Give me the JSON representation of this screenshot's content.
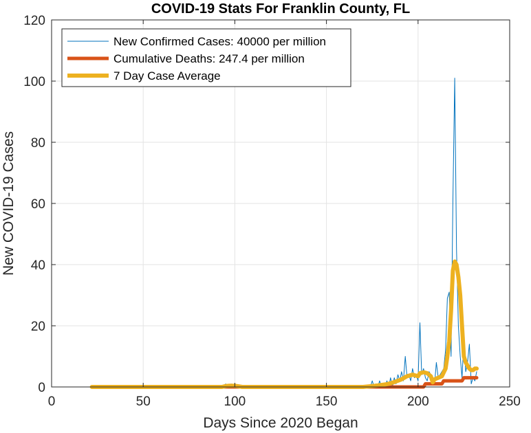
{
  "chart_data": {
    "type": "line",
    "title": "COVID-19 Stats For Franklin County, FL",
    "xlabel": "Days Since 2020 Began",
    "ylabel": "New COVID-19 Cases",
    "xlim": [
      0,
      250
    ],
    "ylim": [
      0,
      120
    ],
    "xticks": [
      0,
      50,
      100,
      150,
      200,
      250
    ],
    "yticks": [
      0,
      20,
      40,
      60,
      80,
      100,
      120
    ],
    "grid": true,
    "legend_position": "top-left",
    "series": [
      {
        "name": "New Confirmed Cases: 40000 per million",
        "color": "#0072BD",
        "x": [
          22,
          90,
          94,
          95,
          96,
          97,
          98,
          99,
          100,
          101,
          102,
          103,
          104,
          170,
          174,
          175,
          176,
          177,
          178,
          179,
          180,
          181,
          182,
          183,
          184,
          185,
          186,
          187,
          188,
          189,
          190,
          191,
          192,
          193,
          194,
          195,
          196,
          197,
          198,
          199,
          200,
          201,
          202,
          203,
          204,
          205,
          206,
          207,
          208,
          209,
          210,
          211,
          212,
          213,
          214,
          215,
          216,
          217,
          218,
          219,
          220,
          221,
          222,
          223,
          224,
          225,
          226,
          227,
          228,
          229,
          230,
          231,
          232
        ],
        "y": [
          0,
          0,
          0,
          1,
          0,
          0,
          1,
          0,
          1,
          0,
          0,
          0,
          0,
          0,
          0,
          2,
          0,
          1,
          0,
          2,
          0,
          1,
          0,
          2,
          0,
          3,
          0,
          3,
          1,
          4,
          2,
          5,
          2,
          10,
          3,
          4,
          2,
          6,
          3,
          4,
          2,
          21,
          4,
          6,
          3,
          2,
          5,
          4,
          2,
          1,
          8,
          3,
          4,
          5,
          6,
          12,
          29,
          31,
          10,
          60,
          101,
          45,
          20,
          10,
          3,
          15,
          5,
          8,
          14,
          1,
          3,
          2,
          5
        ]
      },
      {
        "name": "Cumulative Deaths: 247.4 per million",
        "color": "#D95319",
        "x": [
          22,
          203,
          204,
          205,
          213,
          214,
          215,
          224,
          225,
          226,
          232
        ],
        "y": [
          0,
          0,
          1,
          1,
          1,
          2,
          2,
          2,
          3,
          3,
          3
        ]
      },
      {
        "name": "7 Day Case Average",
        "color": "#EDB120",
        "x": [
          22,
          93,
          95,
          97,
          100,
          102,
          104,
          170,
          175,
          178,
          182,
          185,
          188,
          191,
          194,
          197,
          200,
          201,
          203,
          205,
          207,
          208,
          209,
          211,
          213,
          215,
          216,
          217,
          218,
          219,
          220,
          221,
          222,
          223,
          224,
          225,
          226,
          227,
          228,
          229,
          230,
          231,
          232
        ],
        "y": [
          0,
          0,
          0.3,
          0.4,
          0.4,
          0.2,
          0,
          0,
          0.3,
          0.5,
          0.8,
          1.2,
          1.8,
          2.5,
          3.5,
          4.0,
          3.5,
          4.5,
          4.8,
          4.5,
          3.5,
          1.5,
          2.5,
          3.0,
          3.5,
          6.0,
          10,
          15,
          25,
          38,
          41,
          40,
          36,
          30,
          20,
          10,
          8,
          7,
          6,
          5.5,
          5.5,
          6,
          6
        ]
      }
    ]
  }
}
